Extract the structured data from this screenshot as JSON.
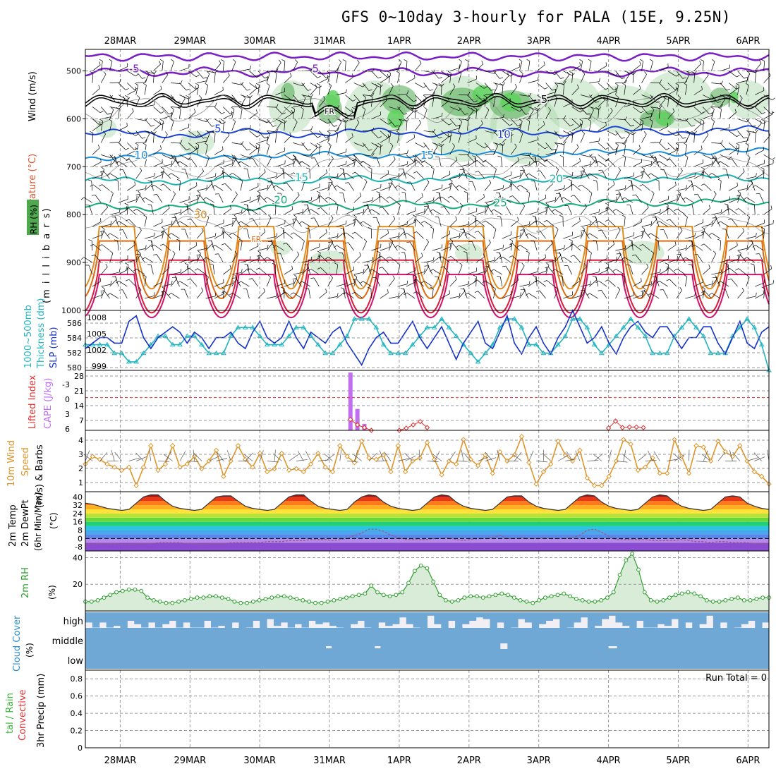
{
  "title": "GFS 0~10day 3-hourly for PALA (15E, 9.25N)",
  "dates": [
    "28MAR",
    "29MAR",
    "30MAR",
    "31MAR",
    "1APR",
    "2APR",
    "3APR",
    "4APR",
    "5APR",
    "6APR"
  ],
  "colors": {
    "frame": "#000000",
    "grid": "#9a9a9a",
    "temp_cold": "#7a1fc4",
    "temp_blue": "#1c44d4",
    "temp_sky": "#1a8fd8",
    "temp_teal": "#1ab3b0",
    "temp_green": "#16ad7a",
    "temp_orange": "#e08c1c",
    "temp_dorange": "#e06a10",
    "temp_red": "#d81c3a",
    "temp_magenta": "#d4126e",
    "rh_fill": "#a8d8a8",
    "rh_fill_dark": "#4ea84e",
    "rh_fill_bright": "#5ed25e",
    "slp": "#1432c8",
    "thickness": "#21b5c0",
    "li": "#e03030",
    "cape": "#c26ef0",
    "wind10": "#e0962a",
    "dewpt": "#9a5a8a",
    "rh2m": "#2e9e2e",
    "rh2m_fill": "#d8ecd8",
    "cloud": "#6fa8d4",
    "cloud_bg": "#f1eef4"
  },
  "panels": {
    "upper": {
      "y_labels": [
        "(m i l l i b a r s)"
      ],
      "title_wind": "Wind (m/s)",
      "title_temp": "Temperature (°C)",
      "title_rh": "RH (%)",
      "ticks": [
        "500",
        "600",
        "700",
        "800",
        "900",
        "1000"
      ],
      "contour_labels": [
        "-5",
        "5",
        "5",
        "10",
        "10",
        "15",
        "15",
        "20",
        "20",
        "25",
        "30",
        "FR",
        "FR",
        "-5"
      ]
    },
    "slp": {
      "title_thick": "1000~500mb Thickness (dm)",
      "title_slp": "SLP (mb)",
      "left_ticks": [
        "586",
        "584",
        "582",
        "580"
      ],
      "right_ticks": [
        "1008",
        "1005",
        "1002",
        "999"
      ]
    },
    "cape": {
      "title_li": "Lifted Index",
      "title_cape": "CAPE (J/kg)",
      "left_ticks": [
        "-3",
        "0",
        "3",
        "6"
      ],
      "right_ticks": [
        "28",
        "21",
        "14",
        "7"
      ]
    },
    "wind10": {
      "title": "10m Wind",
      "title2": "Speed & Barbs",
      "unit": "(m/s)",
      "ticks": [
        "4",
        "3",
        "2",
        "1"
      ]
    },
    "temp2m": {
      "title1": "2m Temp",
      "title2": "2m DewPt",
      "title3": "(6hr Min/Max)",
      "unit": "(°C)",
      "ticks": [
        "40",
        "32",
        "24",
        "16",
        "8",
        "0",
        "-8"
      ]
    },
    "rh2m": {
      "title": "2m RH",
      "unit": "(%)",
      "ticks": [
        "40",
        "20"
      ]
    },
    "cloud": {
      "title": "Cloud Cover",
      "unit": "(%)",
      "levels": [
        "high",
        "middle",
        "low"
      ]
    },
    "precip": {
      "title": "3hr Precip (mm)",
      "title_total": "tal / Rain",
      "title_conv": "Convective",
      "run_total": "Run Total = 0",
      "ticks": [
        "0.8",
        "0.6",
        "0.4",
        "0.2",
        "0"
      ]
    }
  },
  "chart_data": [
    {
      "type": "line",
      "name": "SLP (mb)",
      "x_start": "27MAR 12Z",
      "x_step_hours": 3,
      "ylim": [
        998,
        1009
      ],
      "values": [
        1002,
        1003,
        1004,
        1004,
        1003,
        1003,
        1007,
        1008,
        1004,
        1002,
        1004,
        1005,
        1006,
        1005,
        1003,
        1005,
        1004,
        1002,
        1004,
        1004,
        1005,
        1003,
        1002,
        1005,
        1007,
        1004,
        1003,
        1004,
        1007,
        1004,
        1002,
        1005,
        1004,
        1003,
        1005,
        1006,
        1003,
        1001,
        999,
        1002,
        1004,
        1005,
        1003,
        1003,
        1005,
        1007,
        1004,
        1002,
        1004,
        1006,
        1003,
        1000,
        1003,
        1005,
        1007,
        1003,
        1002,
        1005,
        1008,
        1003,
        1001,
        1004,
        1006,
        1003,
        1001,
        1004,
        1006,
        1009,
        1006,
        1003,
        1004,
        1006,
        1003,
        1001,
        1004,
        1006,
        1007,
        1005,
        1004,
        1006,
        1006,
        1004,
        1002,
        1004,
        1004,
        1006,
        1006,
        1003,
        1001,
        1004,
        1007,
        1003,
        1002,
        1005,
        1006
      ]
    },
    {
      "type": "line",
      "name": "1000~500mb Thickness (dm)",
      "ylim": [
        580,
        587
      ],
      "values": [
        583,
        583,
        583,
        583,
        582,
        582,
        581,
        581,
        582,
        583,
        584,
        584,
        583,
        583,
        584,
        584,
        583,
        582,
        582,
        582,
        584,
        585,
        585,
        585,
        584,
        583,
        583,
        583,
        584,
        585,
        585,
        584,
        583,
        582,
        582,
        583,
        584,
        586,
        586,
        586,
        585,
        583,
        582,
        582,
        582,
        583,
        584,
        585,
        585,
        586,
        585,
        584,
        583,
        582,
        581,
        582,
        583,
        585,
        586,
        586,
        585,
        583,
        583,
        582,
        582,
        583,
        584,
        586,
        586,
        585,
        583,
        582,
        583,
        584,
        585,
        586,
        585,
        584,
        582,
        582,
        582,
        584,
        585,
        586,
        585,
        584,
        582,
        582,
        582,
        584,
        585,
        586,
        585,
        583,
        580
      ]
    },
    {
      "type": "bar",
      "name": "CAPE (J/kg)",
      "ylim": [
        0,
        28
      ],
      "bars": [
        {
          "x": 31.3,
          "value": 27
        },
        {
          "x": 31.4,
          "value": 10
        },
        {
          "x": 31.5,
          "value": 3
        }
      ]
    },
    {
      "type": "line",
      "name": "Lifted Index",
      "ylim": [
        -5,
        6
      ],
      "segments": [
        {
          "x": [
            31.3,
            31.4,
            31.5,
            31.6
          ],
          "y": [
            4,
            5,
            5.5,
            6
          ]
        },
        {
          "x": [
            32.0,
            32.1,
            32.2,
            32.3,
            32.4
          ],
          "y": [
            6,
            5.6,
            5,
            4.4,
            5.5
          ]
        },
        {
          "x": [
            35.0,
            35.1,
            35.2,
            35.3,
            35.4,
            35.5
          ],
          "y": [
            5.6,
            4.3,
            5.5,
            5.4,
            5.4,
            5.5
          ]
        }
      ]
    },
    {
      "type": "line",
      "name": "10m Wind Speed (m/s)",
      "ylim": [
        0.5,
        4.5
      ],
      "values": [
        2.3,
        2.8,
        2.6,
        2.3,
        2.1,
        1.9,
        2.1,
        0.9,
        2.1,
        3.5,
        1.9,
        2.3,
        3.5,
        2.1,
        2.3,
        2.8,
        2.0,
        2.5,
        3.2,
        1.5,
        2.5,
        3.5,
        2.6,
        2.1,
        3.0,
        1.8,
        2.0,
        3.0,
        1.9,
        2.0,
        1.8,
        2.3,
        3.0,
        2.1,
        1.8,
        3.5,
        2.8,
        2.4,
        3.8,
        2.7,
        2.6,
        2.9,
        1.8,
        3.5,
        1.8,
        2.5,
        2.7,
        3.7,
        2.6,
        1.6,
        2.5,
        2.3,
        3.9,
        2.6,
        2.2,
        2.9,
        1.7,
        3.1,
        2.5,
        2.9,
        4.1,
        2.4,
        1.0,
        1.8,
        2.3,
        3.8,
        2.9,
        2.5,
        3.2,
        1.4,
        0.9,
        0.9,
        1.5,
        2.5,
        3.9,
        3.6,
        1.9,
        2.1,
        2.7,
        1.7,
        1.7,
        3.9,
        2.8,
        1.7,
        3.5,
        3.4,
        2.5,
        3.8,
        3.1,
        2.8,
        3.5,
        2.5,
        1.8,
        1.5,
        1.0
      ]
    },
    {
      "type": "line",
      "name": "2m Temp (°C)",
      "ylim": [
        -12,
        45
      ],
      "values": [
        34,
        33,
        31,
        29,
        28,
        27,
        28,
        34,
        40,
        42,
        42,
        36,
        31,
        29,
        28,
        27,
        28,
        34,
        40,
        41,
        41,
        36,
        31,
        29,
        28,
        27,
        28,
        34,
        40,
        42,
        42,
        36,
        31,
        29,
        28,
        27,
        28,
        35,
        40,
        42,
        41,
        35,
        31,
        29,
        28,
        27,
        28,
        34,
        40,
        42,
        41,
        35,
        31,
        29,
        28,
        27,
        28,
        34,
        40,
        41,
        41,
        35,
        31,
        29,
        28,
        27,
        28,
        34,
        40,
        42,
        41,
        35,
        31,
        29,
        28,
        27,
        28,
        34,
        40,
        42,
        41,
        35,
        31,
        29,
        28,
        27,
        28,
        34,
        40,
        41,
        40,
        34,
        31,
        29,
        28
      ]
    },
    {
      "type": "line",
      "name": "2m DewPt (°C)",
      "ylim": [
        -12,
        45
      ],
      "values": [
        -6,
        -6,
        -5,
        -5,
        -5,
        -6,
        -6,
        -5,
        -5,
        -5,
        -4,
        -4,
        -4,
        -4,
        -5,
        -5,
        -6,
        -5,
        -5,
        -5,
        -4,
        -4,
        -4,
        -4,
        -4,
        -3,
        -3,
        -3,
        -2,
        -2,
        -2,
        -1,
        -1,
        -1,
        -2,
        -1,
        0,
        3,
        5,
        9,
        9,
        7,
        3,
        1,
        -1,
        -1,
        -1,
        -1,
        0,
        0,
        1,
        -1,
        -2,
        -1,
        0,
        0,
        1,
        3,
        0,
        0,
        1,
        0,
        0,
        1,
        0,
        0,
        0,
        1,
        3,
        8,
        9,
        6,
        2,
        -1,
        -1,
        -1,
        -1,
        -1,
        -2,
        -2,
        -2,
        -2,
        -1,
        -2,
        -3,
        -3,
        -4,
        -3,
        -3,
        -4,
        -4,
        -4,
        -5,
        -5,
        -6
      ]
    },
    {
      "type": "area",
      "name": "2m RH (%)",
      "ylim": [
        0,
        45
      ],
      "values": [
        7,
        7,
        8,
        10,
        12,
        14,
        15,
        16,
        16,
        15,
        10,
        8,
        7,
        6,
        6,
        7,
        8,
        9,
        10,
        10,
        11,
        11,
        10,
        9,
        7,
        6,
        6,
        7,
        8,
        9,
        10,
        11,
        11,
        10,
        9,
        8,
        7,
        6,
        6,
        7,
        8,
        9,
        10,
        11,
        12,
        13,
        19,
        14,
        12,
        11,
        12,
        14,
        21,
        30,
        34,
        32,
        22,
        12,
        8,
        7,
        8,
        10,
        11,
        11,
        10,
        11,
        12,
        13,
        12,
        10,
        8,
        7,
        6,
        8,
        10,
        11,
        12,
        13,
        11,
        9,
        8,
        7,
        7,
        8,
        10,
        14,
        27,
        38,
        43,
        31,
        14,
        8,
        7,
        8,
        10,
        12,
        13,
        14,
        13,
        11,
        8,
        7,
        7,
        8,
        9,
        10,
        8,
        8,
        9,
        10,
        10
      ]
    },
    {
      "type": "table",
      "name": "Cloud Cover (%)",
      "levels": [
        "high",
        "middle",
        "low"
      ],
      "high_values": [
        60,
        90,
        60,
        90,
        80,
        100,
        50,
        70,
        90,
        60,
        90,
        70,
        50,
        90,
        60,
        90,
        90,
        50,
        90,
        80,
        100,
        60,
        100,
        90,
        50,
        100,
        40,
        80,
        60,
        90,
        70,
        90,
        50,
        70,
        60,
        80,
        90,
        100,
        70,
        50,
        90,
        100,
        60,
        80,
        70,
        30,
        70,
        90,
        100,
        20,
        70,
        100,
        50,
        100,
        70,
        50,
        30,
        40,
        100,
        60,
        100,
        90,
        40,
        60,
        100,
        70,
        50,
        40,
        100,
        90,
        60,
        30,
        100,
        80,
        40,
        20,
        60,
        80,
        100,
        50,
        90,
        90,
        70,
        80,
        40,
        100,
        60,
        100,
        70,
        20,
        100,
        60,
        100,
        90,
        70,
        50,
        100,
        60
      ],
      "middle_values": [
        100,
        100,
        100,
        100,
        100,
        100,
        100,
        100,
        100,
        100,
        100,
        100,
        100,
        100,
        100,
        100,
        100,
        100,
        100,
        100,
        100,
        100,
        100,
        100,
        100,
        100,
        100,
        100,
        100,
        100,
        100,
        100,
        100,
        100,
        100,
        100,
        100,
        100,
        100,
        100,
        100,
        100,
        100,
        100,
        100,
        100,
        100,
        100,
        100,
        100,
        100,
        100,
        100,
        100,
        100,
        100,
        100,
        100,
        100,
        100,
        100,
        100,
        100,
        100,
        100,
        100,
        100,
        100,
        100,
        100,
        100,
        100,
        100,
        100,
        100,
        100,
        100,
        100,
        100,
        100,
        100,
        100,
        100,
        100,
        100,
        100,
        100,
        100,
        100,
        100,
        100,
        100,
        100,
        100,
        100,
        100,
        100,
        100
      ],
      "low_values": [
        100,
        100,
        100,
        100,
        100,
        100,
        100,
        100,
        100,
        100,
        100,
        100,
        100,
        100,
        100,
        100,
        100,
        100,
        100,
        100,
        100,
        100,
        100,
        100,
        100,
        100,
        100,
        100,
        100,
        100,
        100,
        100,
        100,
        100,
        100,
        100,
        100,
        100,
        100,
        100,
        100,
        100,
        100,
        100,
        100,
        100,
        100,
        100,
        100,
        100,
        100,
        100,
        100,
        100,
        100,
        100,
        100,
        100,
        100,
        100,
        100,
        100,
        100,
        100,
        100,
        100,
        100,
        100,
        100,
        100,
        100,
        100,
        100,
        100,
        100,
        100,
        100,
        100,
        100,
        100,
        100,
        100,
        100,
        100,
        100,
        100,
        100,
        100,
        100,
        100,
        100,
        100,
        100,
        100,
        100,
        100,
        100,
        100
      ]
    },
    {
      "type": "bar",
      "name": "3hr Precip (mm)",
      "ylim": [
        0,
        0.9
      ],
      "values": [],
      "run_total": 0
    }
  ]
}
